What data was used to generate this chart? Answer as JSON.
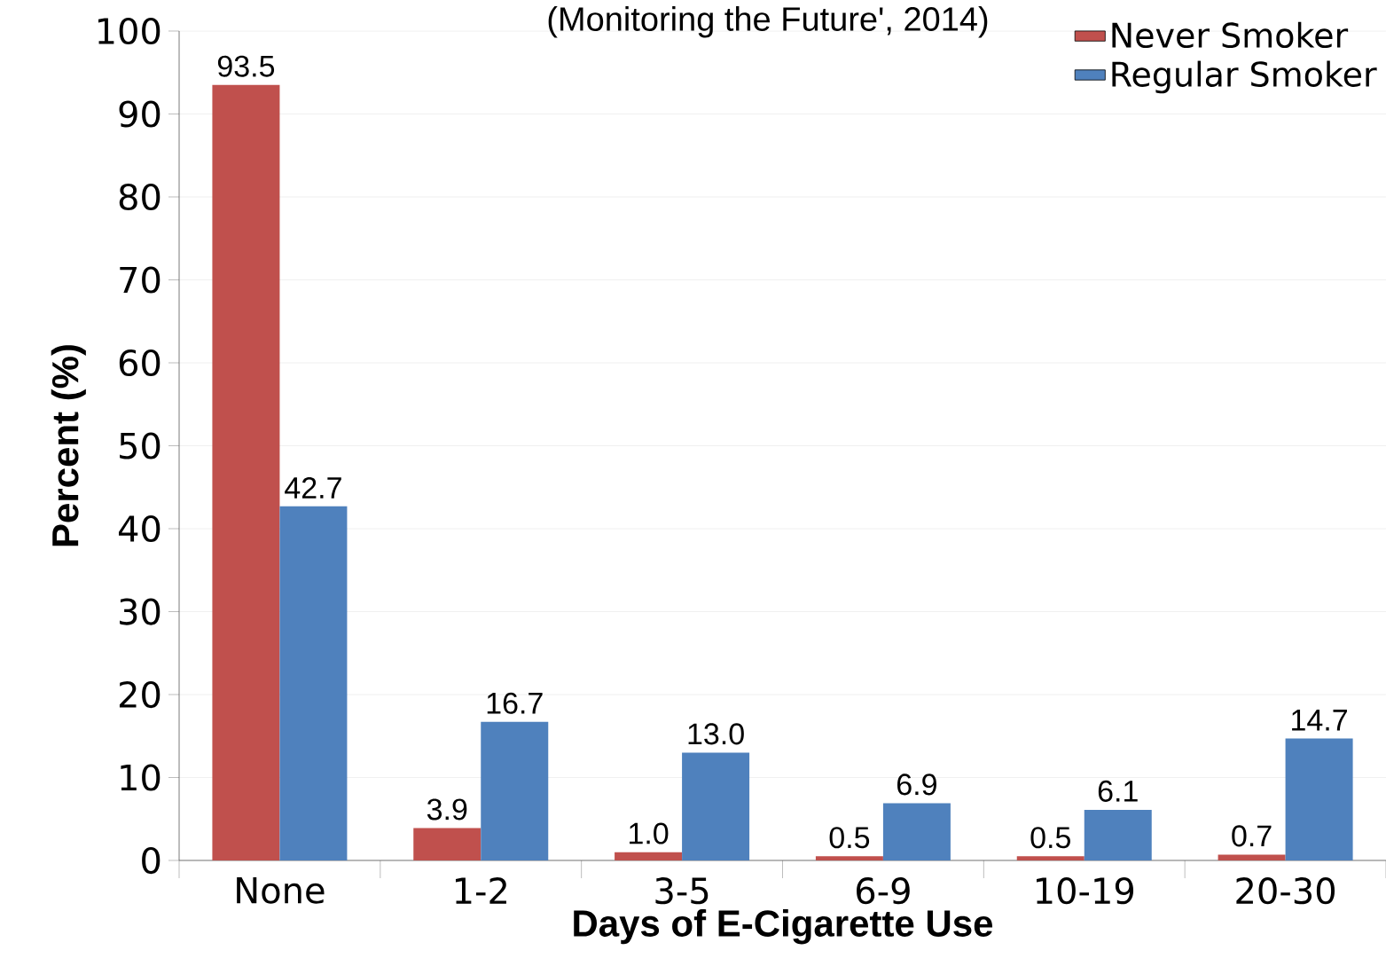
{
  "chart_data": {
    "type": "bar",
    "subtitle": "(Monitoring the Future', 2014)",
    "xlabel": "Days of E-Cigarette Use",
    "ylabel": "Percent (%)",
    "categories": [
      "None",
      "1-2",
      "3-5",
      "6-9",
      "10-19",
      "20-30"
    ],
    "series": [
      {
        "name": "Never Smoker",
        "color": "#c0504d",
        "values": [
          93.5,
          3.9,
          1.0,
          0.5,
          0.5,
          0.7
        ],
        "value_labels": [
          "93.5",
          "3.9",
          "1.0",
          "0.5",
          "0.5",
          "0.7"
        ]
      },
      {
        "name": "Regular Smoker",
        "color": "#4f81bd",
        "values": [
          42.7,
          16.7,
          13.0,
          6.9,
          6.1,
          14.7
        ],
        "value_labels": [
          "42.7",
          "16.7",
          "13.0",
          "6.9",
          "6.1",
          "14.7"
        ]
      }
    ],
    "ylim": [
      0,
      100
    ],
    "yticks": [
      0,
      10,
      20,
      30,
      40,
      50,
      60,
      70,
      80,
      90,
      100
    ],
    "grid": "y",
    "legend": "top right"
  }
}
